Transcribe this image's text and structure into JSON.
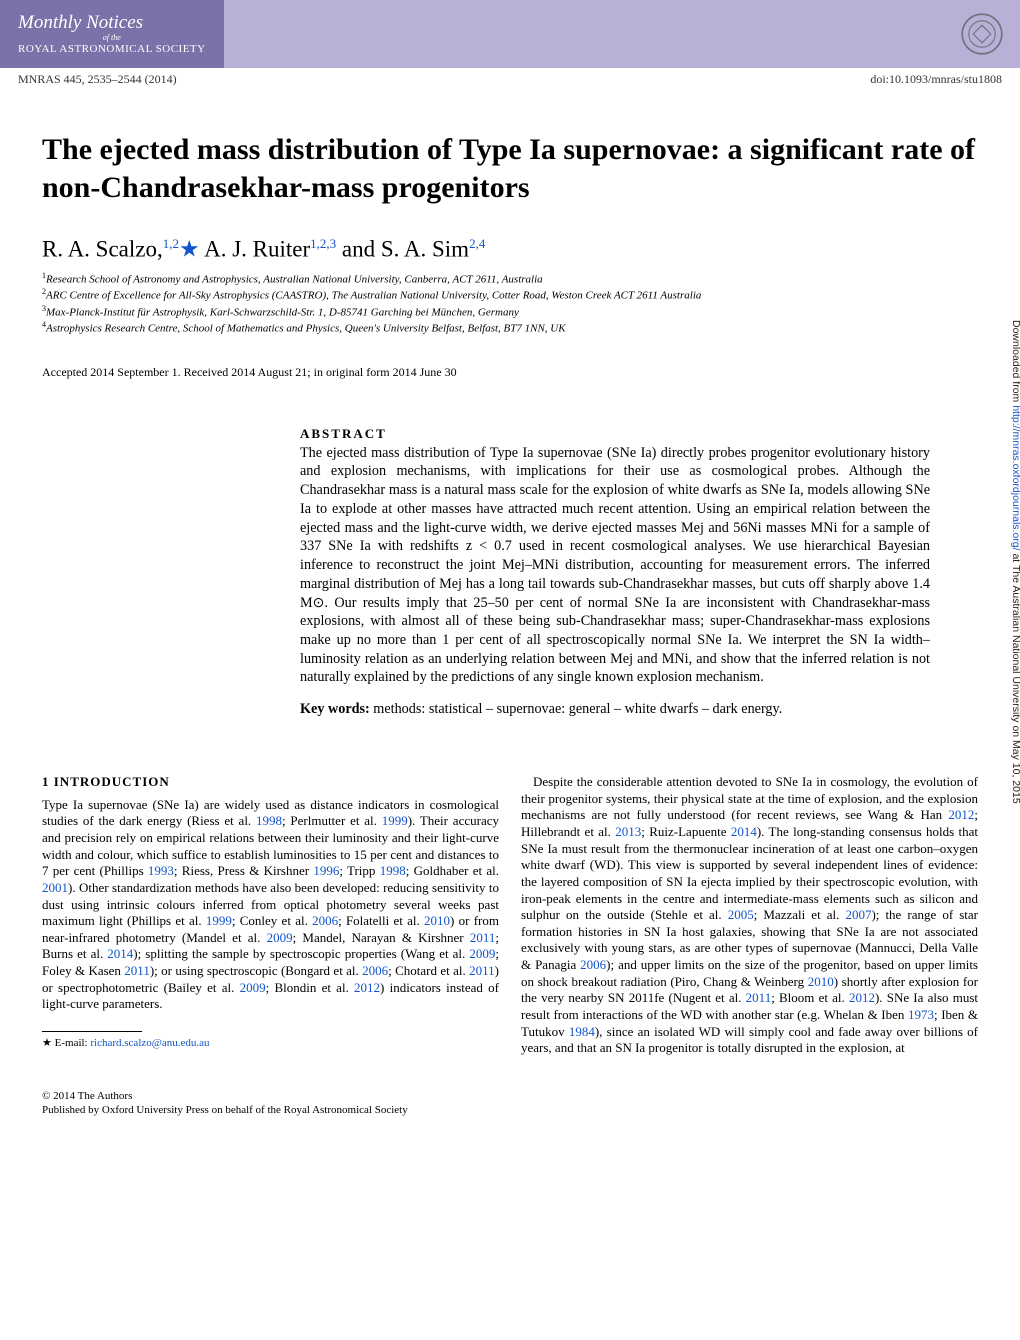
{
  "journal": {
    "line1": "Monthly Notices",
    "line2": "of the",
    "line3": "ROYAL ASTRONOMICAL SOCIETY"
  },
  "pub": {
    "citation": "MNRAS 445, 2535–2544 (2014)",
    "doi": "doi:10.1093/mnras/stu1808"
  },
  "title": "The ejected mass distribution of Type Ia supernovae: a significant rate of non-Chandrasekhar-mass progenitors",
  "authors_html": "R. A. Scalzo,<span class='sup'>1,2</span><span class='star'>★</span> A. J. Ruiter<span class='sup'>1,2,3</span> and S. A. Sim<span class='sup'>2,4</span>",
  "affiliations": [
    "Research School of Astronomy and Astrophysics, Australian National University, Canberra, ACT 2611, Australia",
    "ARC Centre of Excellence for All-Sky Astrophysics (CAASTRO), The Australian National University, Cotter Road, Weston Creek ACT 2611 Australia",
    "Max-Planck-Institut für Astrophysik, Karl-Schwarzschild-Str. 1, D-85741 Garching bei München, Germany",
    "Astrophysics Research Centre, School of Mathematics and Physics, Queen's University Belfast, Belfast, BT7 1NN, UK"
  ],
  "dates": "Accepted 2014 September 1. Received 2014 August 21; in original form 2014 June 30",
  "abstract": {
    "heading": "ABSTRACT",
    "text": "The ejected mass distribution of Type Ia supernovae (SNe Ia) directly probes progenitor evolutionary history and explosion mechanisms, with implications for their use as cosmological probes. Although the Chandrasekhar mass is a natural mass scale for the explosion of white dwarfs as SNe Ia, models allowing SNe Ia to explode at other masses have attracted much recent attention. Using an empirical relation between the ejected mass and the light-curve width, we derive ejected masses Mej and 56Ni masses MNi for a sample of 337 SNe Ia with redshifts z < 0.7 used in recent cosmological analyses. We use hierarchical Bayesian inference to reconstruct the joint Mej–MNi distribution, accounting for measurement errors. The inferred marginal distribution of Mej has a long tail towards sub-Chandrasekhar masses, but cuts off sharply above 1.4 M⊙. Our results imply that 25–50 per cent of normal SNe Ia are inconsistent with Chandrasekhar-mass explosions, with almost all of these being sub-Chandrasekhar mass; super-Chandrasekhar-mass explosions make up no more than 1 per cent of all spectroscopically normal SNe Ia. We interpret the SN Ia width–luminosity relation as an underlying relation between Mej and MNi, and show that the inferred relation is not naturally explained by the predictions of any single known explosion mechanism.",
    "keywords_label": "Key words:",
    "keywords": " methods: statistical – supernovae: general – white dwarfs – dark energy."
  },
  "intro": {
    "heading": "1 INTRODUCTION",
    "col1p1": "Type Ia supernovae (SNe Ia) are widely used as distance indicators in cosmological studies of the dark energy (Riess et al. <span class='ref'>1998</span>; Perlmutter et al. <span class='ref'>1999</span>). Their accuracy and precision rely on empirical relations between their luminosity and their light-curve width and colour, which suffice to establish luminosities to 15 per cent and distances to 7 per cent (Phillips <span class='ref'>1993</span>; Riess, Press & Kirshner <span class='ref'>1996</span>; Tripp <span class='ref'>1998</span>; Goldhaber et al. <span class='ref'>2001</span>). Other standardization methods have also been developed: reducing sensitivity to dust using intrinsic colours inferred from optical photometry several weeks past maximum light (Phillips et al. <span class='ref'>1999</span>; Conley et al. <span class='ref'>2006</span>; Folatelli et al. <span class='ref'>2010</span>) or from near-infrared photometry (Mandel et al. <span class='ref'>2009</span>; Mandel, Narayan & Kirshner <span class='ref'>2011</span>; Burns et al. <span class='ref'>2014</span>); splitting the sample by spectroscopic properties (Wang et al. <span class='ref'>2009</span>; Foley & Kasen <span class='ref'>2011</span>); or using spectroscopic (Bongard et al. <span class='ref'>2006</span>; Chotard et al. <span class='ref'>2011</span>) or spectrophotometric (Bailey et al. <span class='ref'>2009</span>; Blondin et al. <span class='ref'>2012</span>) indicators instead of light-curve parameters.",
    "col2p1": "Despite the considerable attention devoted to SNe Ia in cosmology, the evolution of their progenitor systems, their physical state at the time of explosion, and the explosion mechanisms are not fully understood (for recent reviews, see Wang & Han <span class='ref'>2012</span>; Hillebrandt et al. <span class='ref'>2013</span>; Ruiz-Lapuente <span class='ref'>2014</span>). The long-standing consensus holds that SNe Ia must result from the thermonuclear incineration of at least one carbon–oxygen white dwarf (WD). This view is supported by several independent lines of evidence: the layered composition of SN Ia ejecta implied by their spectroscopic evolution, with iron-peak elements in the centre and intermediate-mass elements such as silicon and sulphur on the outside (Stehle et al. <span class='ref'>2005</span>; Mazzali et al. <span class='ref'>2007</span>); the range of star formation histories in SN Ia host galaxies, showing that SNe Ia are not associated exclusively with young stars, as are other types of supernovae (Mannucci, Della Valle & Panagia <span class='ref'>2006</span>); and upper limits on the size of the progenitor, based on upper limits on shock breakout radiation (Piro, Chang & Weinberg <span class='ref'>2010</span>) shortly after explosion for the very nearby SN 2011fe (Nugent et al. <span class='ref'>2011</span>; Bloom et al. <span class='ref'>2012</span>). SNe Ia also must result from interactions of the WD with another star (e.g. Whelan & Iben <span class='ref'>1973</span>; Iben & Tutukov <span class='ref'>1984</span>), since an isolated WD will simply cool and fade away over billions of years, and that an SN Ia progenitor is totally disrupted in the explosion, at"
  },
  "footnote": {
    "star": "★",
    "text": "E-mail: ",
    "email": "richard.scalzo@anu.edu.au"
  },
  "footer": {
    "line1": "© 2014 The Authors",
    "line2": "Published by Oxford University Press on behalf of the Royal Astronomical Society"
  },
  "sidebar": {
    "prefix": "Downloaded from ",
    "link": "http://mnras.oxfordjournals.org/",
    "suffix": " at The Australian National University on May 10, 2015"
  }
}
